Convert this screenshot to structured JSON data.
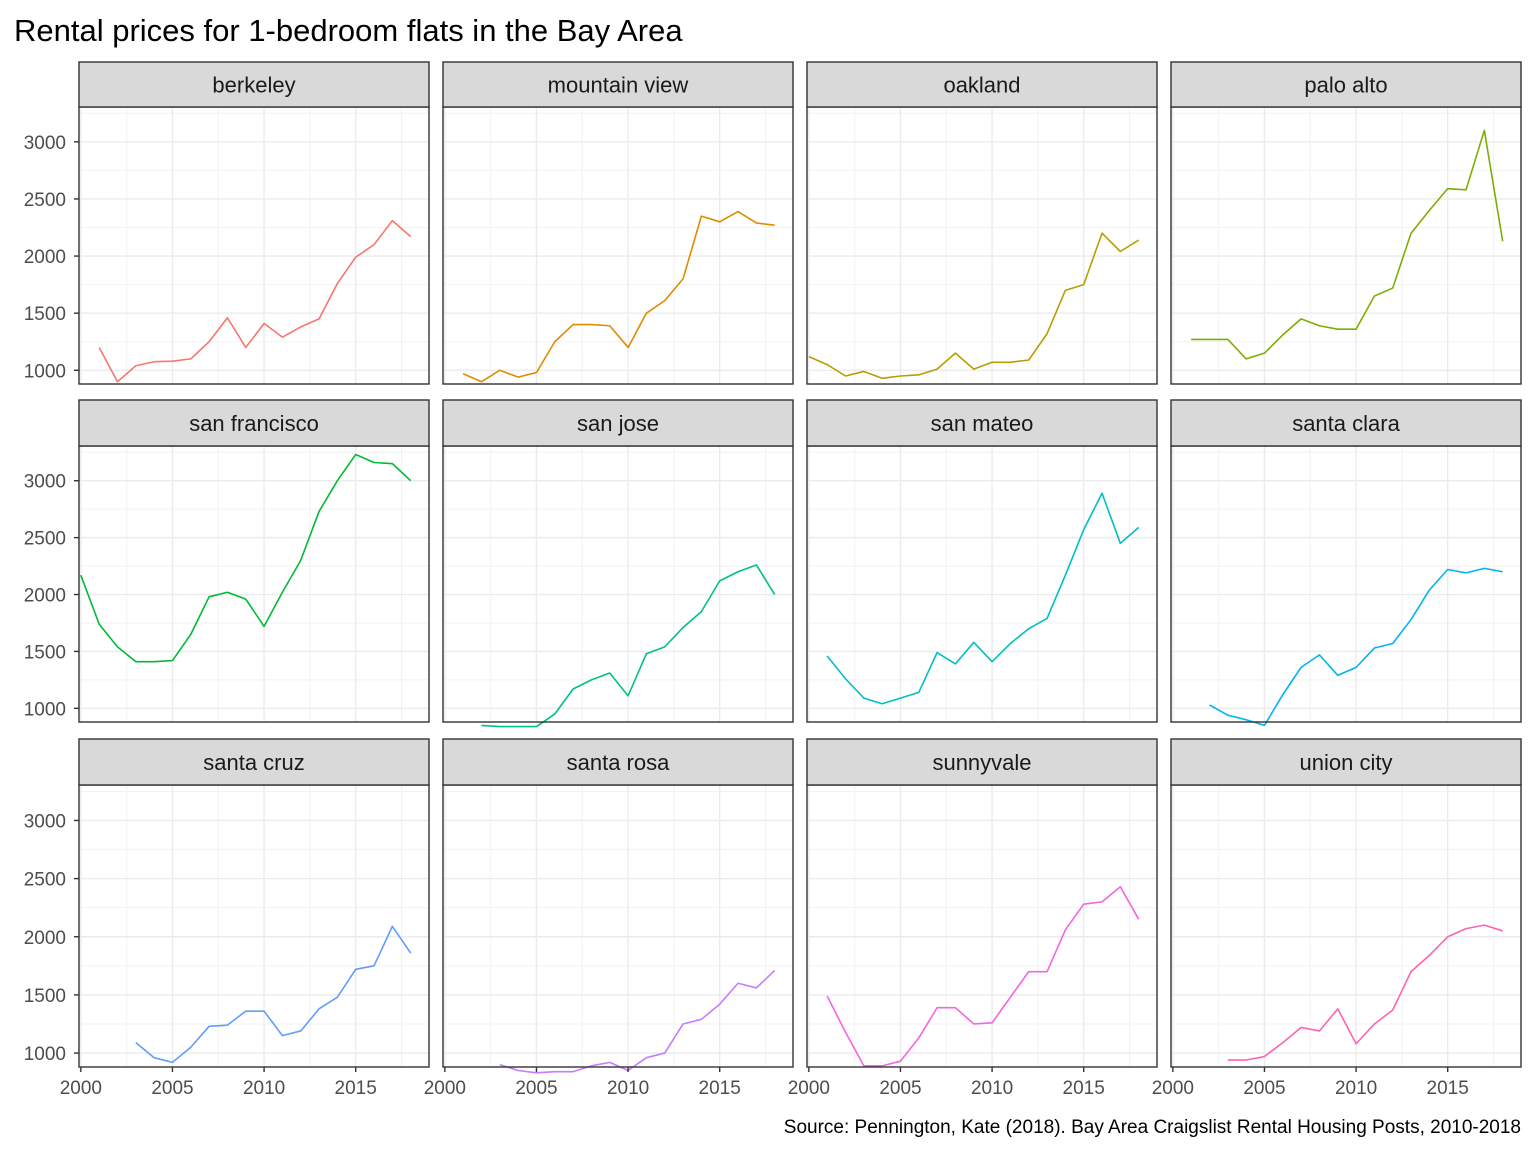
{
  "chart_data": {
    "type": "line",
    "title": "Rental prices for 1-bedroom flats in the Bay Area",
    "caption": "Source: Pennington, Kate (2018). Bay Area Craigslist Rental Housing Posts, 2010-2018",
    "xlabel": "",
    "ylabel": "",
    "xlim": [
      1999.9,
      2019
    ],
    "ylim": [
      880,
      3305
    ],
    "x_ticks": [
      2000,
      2005,
      2010,
      2015
    ],
    "y_ticks": [
      1000,
      1500,
      2000,
      2500,
      3000
    ],
    "grid": true,
    "facets": [
      {
        "name": "berkeley",
        "color": "#F8766D",
        "x": [
          2001,
          2002,
          2003,
          2004,
          2005,
          2006,
          2007,
          2008,
          2009,
          2010,
          2011,
          2012,
          2013,
          2014,
          2015,
          2016,
          2017,
          2018
        ],
        "y": [
          1200,
          900,
          1040,
          1075,
          1080,
          1100,
          1250,
          1460,
          1200,
          1410,
          1290,
          1380,
          1450,
          1760,
          1990,
          2100,
          2310,
          2170
        ]
      },
      {
        "name": "mountain view",
        "color": "#DE8C00",
        "x": [
          2001,
          2002,
          2003,
          2004,
          2005,
          2006,
          2007,
          2008,
          2009,
          2010,
          2011,
          2012,
          2013,
          2014,
          2015,
          2016,
          2017,
          2018
        ],
        "y": [
          970,
          900,
          1000,
          940,
          980,
          1250,
          1400,
          1400,
          1390,
          1200,
          1500,
          1610,
          1800,
          2350,
          2300,
          2390,
          2290,
          2270
        ]
      },
      {
        "name": "oakland",
        "color": "#B79F00",
        "x": [
          2000,
          2001,
          2002,
          2003,
          2004,
          2005,
          2006,
          2007,
          2008,
          2009,
          2010,
          2011,
          2012,
          2013,
          2014,
          2015,
          2016,
          2017,
          2018
        ],
        "y": [
          1120,
          1050,
          950,
          990,
          930,
          950,
          960,
          1010,
          1150,
          1010,
          1070,
          1070,
          1090,
          1320,
          1700,
          1750,
          2200,
          2040,
          2140
        ]
      },
      {
        "name": "palo alto",
        "color": "#7CAE00",
        "x": [
          2001,
          2002,
          2003,
          2004,
          2005,
          2006,
          2007,
          2008,
          2009,
          2010,
          2011,
          2012,
          2013,
          2014,
          2015,
          2016,
          2017,
          2018
        ],
        "y": [
          1270,
          1270,
          1270,
          1100,
          1150,
          1310,
          1450,
          1390,
          1360,
          1360,
          1650,
          1720,
          2200,
          2400,
          2590,
          2580,
          3100,
          2130
        ]
      },
      {
        "name": "san francisco",
        "color": "#00BA38",
        "x": [
          2000,
          2001,
          2002,
          2003,
          2004,
          2005,
          2006,
          2007,
          2008,
          2009,
          2010,
          2011,
          2012,
          2013,
          2014,
          2015,
          2016,
          2017,
          2018
        ],
        "y": [
          2170,
          1740,
          1540,
          1410,
          1410,
          1420,
          1650,
          1980,
          2020,
          1960,
          1720,
          2020,
          2300,
          2730,
          3000,
          3230,
          3160,
          3150,
          3000
        ]
      },
      {
        "name": "san jose",
        "color": "#00C08B",
        "x": [
          2002,
          2003,
          2004,
          2005,
          2006,
          2007,
          2008,
          2009,
          2010,
          2011,
          2012,
          2013,
          2014,
          2015,
          2016,
          2017,
          2018
        ],
        "y": [
          850,
          840,
          840,
          840,
          950,
          1170,
          1250,
          1310,
          1110,
          1480,
          1540,
          1710,
          1850,
          2120,
          2200,
          2260,
          2000
        ]
      },
      {
        "name": "san mateo",
        "color": "#00BFC4",
        "x": [
          2001,
          2002,
          2003,
          2004,
          2005,
          2006,
          2007,
          2008,
          2009,
          2010,
          2011,
          2012,
          2013,
          2014,
          2015,
          2016,
          2017,
          2018
        ],
        "y": [
          1460,
          1260,
          1090,
          1040,
          1090,
          1140,
          1490,
          1390,
          1580,
          1410,
          1570,
          1700,
          1790,
          2170,
          2570,
          2890,
          2450,
          2590
        ]
      },
      {
        "name": "santa clara",
        "color": "#00B4F0",
        "x": [
          2002,
          2003,
          2004,
          2005,
          2006,
          2007,
          2008,
          2009,
          2010,
          2011,
          2012,
          2013,
          2014,
          2015,
          2016,
          2017,
          2018
        ],
        "y": [
          1030,
          940,
          900,
          850,
          1120,
          1360,
          1470,
          1290,
          1360,
          1530,
          1570,
          1780,
          2040,
          2220,
          2190,
          2230,
          2200
        ]
      },
      {
        "name": "santa cruz",
        "color": "#619CFF",
        "x": [
          2003,
          2004,
          2005,
          2006,
          2007,
          2008,
          2009,
          2010,
          2011,
          2012,
          2013,
          2014,
          2015,
          2016,
          2017,
          2018
        ],
        "y": [
          1090,
          960,
          920,
          1050,
          1230,
          1240,
          1360,
          1360,
          1150,
          1190,
          1380,
          1480,
          1720,
          1750,
          2090,
          1860
        ]
      },
      {
        "name": "santa rosa",
        "color": "#C77CFF",
        "x": [
          2003,
          2004,
          2005,
          2006,
          2007,
          2008,
          2009,
          2010,
          2011,
          2012,
          2013,
          2014,
          2015,
          2016,
          2017,
          2018
        ],
        "y": [
          900,
          850,
          830,
          840,
          840,
          890,
          920,
          850,
          960,
          1000,
          1250,
          1290,
          1420,
          1600,
          1560,
          1710
        ]
      },
      {
        "name": "sunnyvale",
        "color": "#F564E3",
        "x": [
          2001,
          2002,
          2003,
          2004,
          2005,
          2006,
          2007,
          2008,
          2009,
          2010,
          2011,
          2012,
          2013,
          2014,
          2015,
          2016,
          2017,
          2018
        ],
        "y": [
          1490,
          1180,
          890,
          890,
          930,
          1130,
          1390,
          1390,
          1250,
          1260,
          1480,
          1700,
          1700,
          2060,
          2280,
          2300,
          2430,
          2150
        ]
      },
      {
        "name": "union city",
        "color": "#FF64B0",
        "x": [
          2003,
          2004,
          2005,
          2006,
          2007,
          2008,
          2009,
          2010,
          2011,
          2012,
          2013,
          2014,
          2015,
          2016,
          2017,
          2018
        ],
        "y": [
          940,
          940,
          970,
          1090,
          1220,
          1190,
          1380,
          1080,
          1250,
          1370,
          1700,
          1840,
          2000,
          2070,
          2100,
          2050
        ]
      }
    ]
  }
}
